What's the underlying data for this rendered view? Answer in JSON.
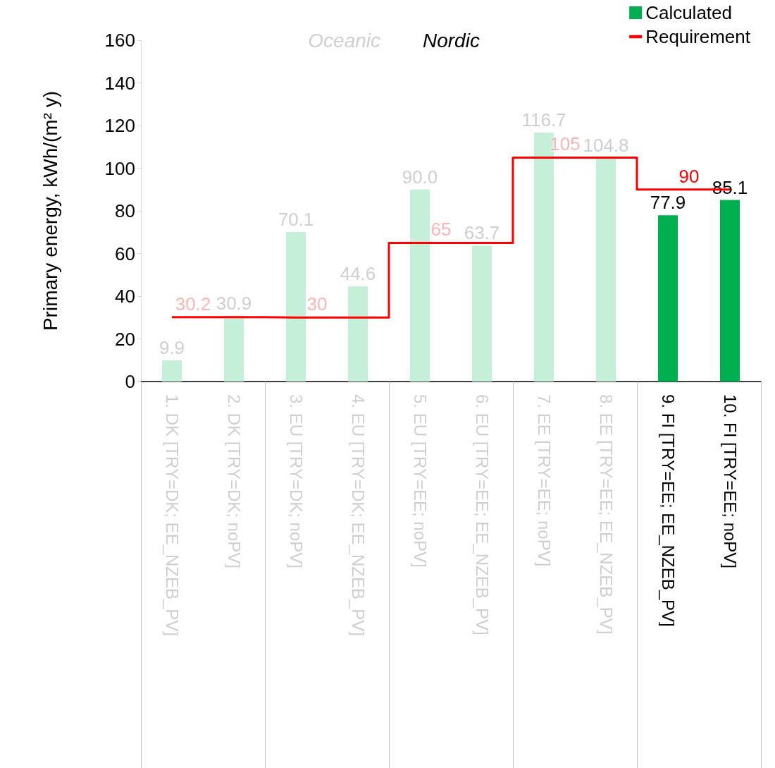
{
  "chart_data": {
    "type": "bar",
    "ylabel": "Primary energy, kWh/(m² y)",
    "categories": [
      "1. DK [TRY=DK; EE_NZEB_PV]",
      "2. DK [TRY=DK; noPV]",
      "3. EU [TRY=DK; noPV]",
      "4. EU [TRY=DK; EE_NZEB_PV]",
      "5. EU [TRY=EE; noPV]",
      "6. EU [TRY=EE; EE_NZEB_PV]",
      "7. EE [TRY=EE; noPV]",
      "8. EE [TRY=EE; EE_NZEB_PV]",
      "9. FI [TRY=EE; EE_NZEB_PV]",
      "10. FI [TRY=EE; noPV]"
    ],
    "series": [
      {
        "name": "Requirement",
        "type": "step",
        "color": "#ff0000",
        "values": [
          30.2,
          30.2,
          30,
          30,
          65,
          65,
          105,
          105,
          90,
          90
        ],
        "value_labels": [
          "30.2",
          null,
          "30",
          null,
          "65",
          null,
          "105",
          null,
          "90",
          null
        ]
      },
      {
        "name": "Calculated",
        "color": "#00b050",
        "colors": [
          "#c6efd9",
          "#c6efd9",
          "#c6efd9",
          "#c6efd9",
          "#c6efd9",
          "#c6efd9",
          "#c6efd9",
          "#c6efd9",
          "#00b050",
          "#00b050"
        ],
        "values": [
          9.9,
          30.9,
          70.1,
          44.6,
          90.0,
          63.7,
          116.7,
          104.8,
          77.9,
          85.1
        ],
        "value_labels": [
          "9.9",
          "30.9",
          "70.1",
          "44.6",
          "90.0",
          "63.7",
          "116.7",
          "104.8",
          "77.9",
          "85.1"
        ]
      }
    ],
    "annotations": [
      "Oceanic",
      "Nordic"
    ],
    "ylim": [
      0,
      160
    ],
    "yticks": [
      0,
      20,
      40,
      60,
      80,
      100,
      120,
      140,
      160
    ],
    "grid": false,
    "legend": "top right"
  }
}
